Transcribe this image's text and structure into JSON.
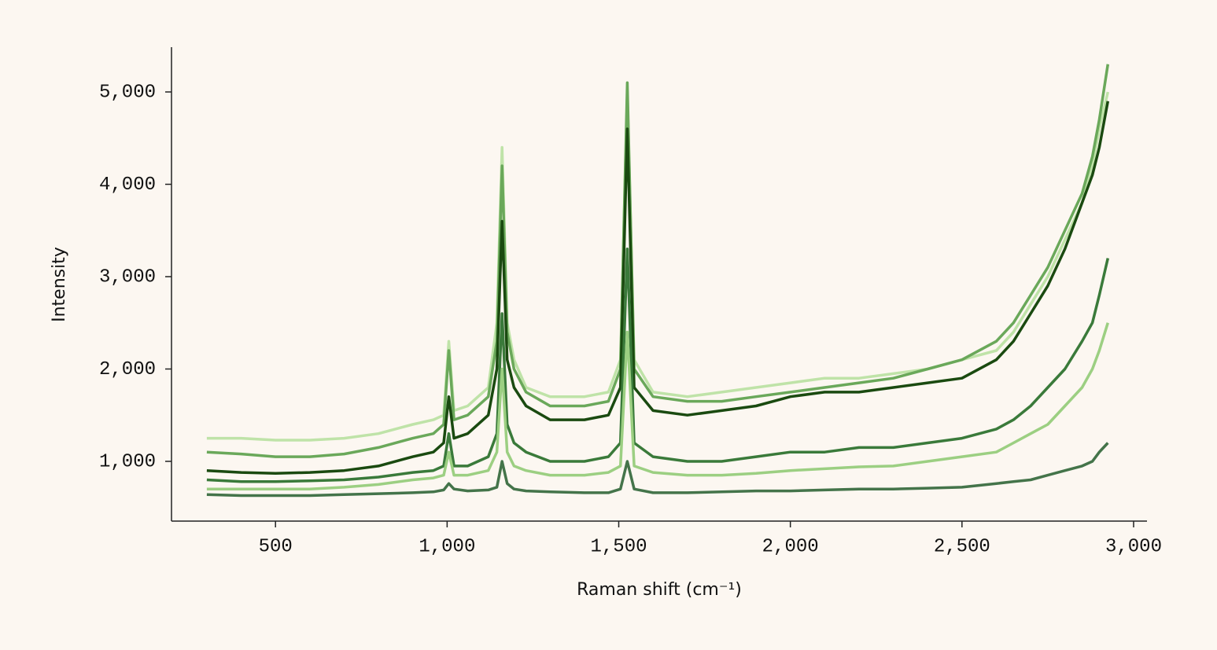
{
  "chart_data": {
    "type": "line",
    "xlabel": "Raman shift (cm⁻¹)",
    "ylabel": "Intensity",
    "xlim": [
      197,
      3039
    ],
    "ylim": [
      353,
      5485
    ],
    "xticks": [
      500,
      {
        "value": 1000,
        "label": "1,000"
      },
      {
        "value": 1500,
        "label": "1,500"
      },
      {
        "value": 2000,
        "label": "2,000"
      },
      {
        "value": 2500,
        "label": "2,500"
      },
      {
        "value": 3000,
        "label": "3,000"
      }
    ],
    "yticks": [
      {
        "value": 1000,
        "label": "1,000"
      },
      {
        "value": 2000,
        "label": "2,000"
      },
      {
        "value": 3000,
        "label": "3,000"
      },
      {
        "value": 4000,
        "label": "4,000"
      },
      {
        "value": 5000,
        "label": "5,000"
      }
    ],
    "x": [
      300,
      400,
      500,
      600,
      700,
      800,
      900,
      960,
      990,
      1005,
      1020,
      1060,
      1120,
      1145,
      1160,
      1175,
      1195,
      1230,
      1300,
      1400,
      1470,
      1505,
      1525,
      1545,
      1600,
      1700,
      1800,
      1900,
      2000,
      2100,
      2200,
      2300,
      2400,
      2500,
      2600,
      2650,
      2700,
      2750,
      2800,
      2850,
      2880,
      2900,
      2925
    ],
    "series": [
      {
        "color": "#bfe3a8",
        "values": [
          1250,
          1250,
          1230,
          1230,
          1250,
          1300,
          1400,
          1450,
          1500,
          2300,
          1550,
          1600,
          1800,
          2500,
          4400,
          2500,
          2100,
          1800,
          1700,
          1700,
          1750,
          2100,
          5000,
          2100,
          1750,
          1700,
          1750,
          1800,
          1850,
          1900,
          1900,
          1950,
          2000,
          2100,
          2200,
          2400,
          2700,
          3000,
          3400,
          3800,
          4200,
          4600,
          5000
        ]
      },
      {
        "color": "#6aa85a",
        "values": [
          1100,
          1080,
          1050,
          1050,
          1080,
          1150,
          1250,
          1300,
          1400,
          2200,
          1450,
          1500,
          1700,
          2300,
          4200,
          2400,
          2000,
          1750,
          1600,
          1600,
          1650,
          2000,
          5100,
          2000,
          1700,
          1650,
          1650,
          1700,
          1750,
          1800,
          1850,
          1900,
          2000,
          2100,
          2300,
          2500,
          2800,
          3100,
          3500,
          3900,
          4300,
          4700,
          5300
        ]
      },
      {
        "color": "#1a4a10",
        "values": [
          900,
          880,
          870,
          880,
          900,
          950,
          1050,
          1100,
          1200,
          1700,
          1250,
          1300,
          1500,
          2000,
          3600,
          2100,
          1800,
          1600,
          1450,
          1450,
          1500,
          1800,
          4600,
          1800,
          1550,
          1500,
          1550,
          1600,
          1700,
          1750,
          1750,
          1800,
          1850,
          1900,
          2100,
          2300,
          2600,
          2900,
          3300,
          3800,
          4100,
          4400,
          4900
        ]
      },
      {
        "color": "#3a7a3a",
        "values": [
          800,
          780,
          780,
          790,
          800,
          830,
          880,
          900,
          950,
          1300,
          950,
          950,
          1050,
          1300,
          2600,
          1400,
          1200,
          1100,
          1000,
          1000,
          1050,
          1200,
          3300,
          1200,
          1050,
          1000,
          1000,
          1050,
          1100,
          1100,
          1150,
          1150,
          1200,
          1250,
          1350,
          1450,
          1600,
          1800,
          2000,
          2300,
          2500,
          2800,
          3200
        ]
      },
      {
        "color": "#9ccf82",
        "values": [
          700,
          700,
          700,
          700,
          720,
          750,
          800,
          820,
          850,
          1100,
          850,
          850,
          900,
          1100,
          2000,
          1100,
          950,
          900,
          850,
          850,
          880,
          950,
          2400,
          950,
          880,
          850,
          850,
          870,
          900,
          920,
          940,
          950,
          1000,
          1050,
          1100,
          1200,
          1300,
          1400,
          1600,
          1800,
          2000,
          2200,
          2500
        ]
      },
      {
        "color": "#44744a",
        "values": [
          640,
          630,
          630,
          630,
          640,
          650,
          660,
          670,
          690,
          760,
          700,
          680,
          690,
          720,
          1000,
          760,
          700,
          680,
          670,
          660,
          660,
          700,
          1000,
          700,
          660,
          660,
          670,
          680,
          680,
          690,
          700,
          700,
          710,
          720,
          760,
          780,
          800,
          850,
          900,
          950,
          1000,
          1100,
          1200
        ]
      }
    ]
  }
}
